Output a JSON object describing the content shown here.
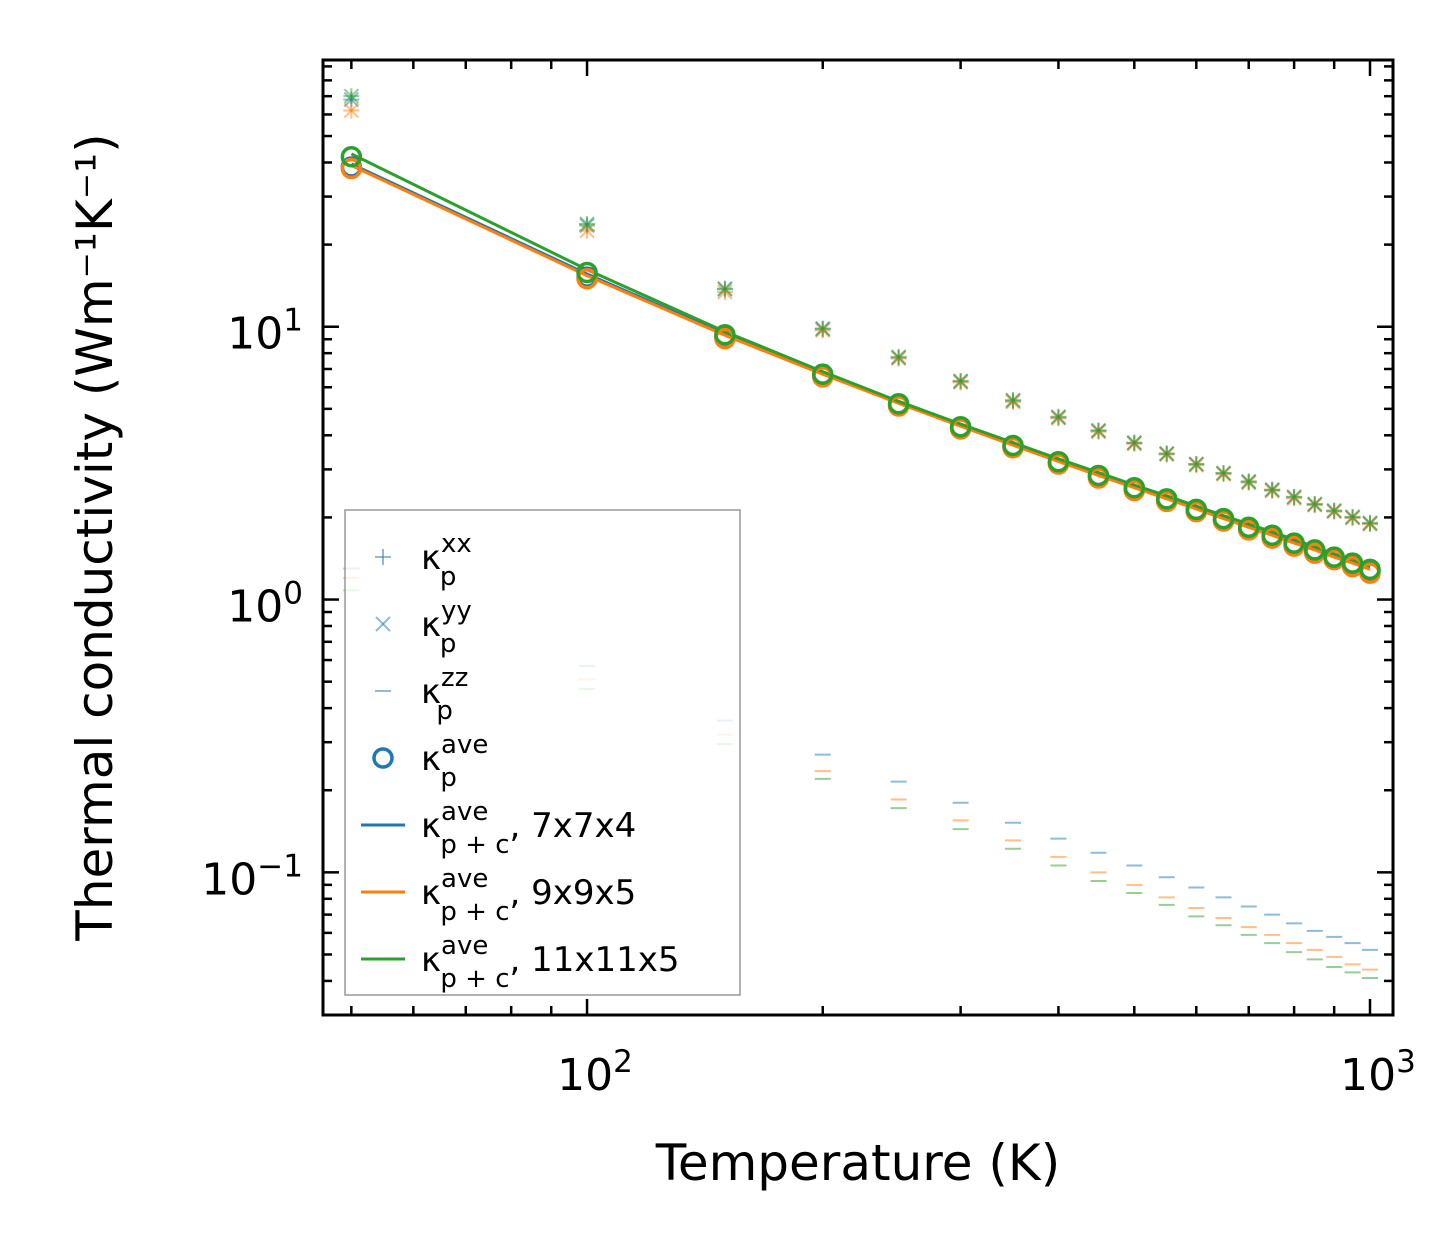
{
  "chart_data": {
    "type": "scatter",
    "x_scale": "log",
    "y_scale": "log",
    "xlim": [
      46,
      1070
    ],
    "ylim": [
      0.03,
      95
    ],
    "xlabel": "Temperature (K)",
    "ylabel": "Thermal conductivity (Wm⁻¹K⁻¹)",
    "x_ticks": [
      {
        "value": 100,
        "base": "10",
        "exp": "2"
      },
      {
        "value": 1000,
        "base": "10",
        "exp": "3"
      }
    ],
    "y_ticks": [
      {
        "value": 0.1,
        "base": "10",
        "exp": "−1"
      },
      {
        "value": 1,
        "base": "10",
        "exp": "0"
      },
      {
        "value": 10,
        "base": "10",
        "exp": "1"
      }
    ],
    "grid": false,
    "legend_position": "lower-left",
    "temperatures": [
      50,
      100,
      150,
      200,
      250,
      300,
      350,
      400,
      450,
      500,
      550,
      600,
      650,
      700,
      750,
      800,
      850,
      900,
      950,
      1000
    ],
    "series": [
      {
        "name": "7x7x4",
        "color": "#1f77b4",
        "xx": [
          68,
          23.5,
          13.7,
          9.8,
          7.7,
          6.3,
          5.35,
          4.65,
          4.15,
          3.75,
          3.42,
          3.13,
          2.9,
          2.7,
          2.52,
          2.37,
          2.23,
          2.11,
          2.0,
          1.9
        ],
        "yy": [
          68,
          23.5,
          13.7,
          9.8,
          7.7,
          6.3,
          5.35,
          4.65,
          4.15,
          3.75,
          3.42,
          3.13,
          2.9,
          2.7,
          2.52,
          2.37,
          2.23,
          2.11,
          2.0,
          1.9
        ],
        "zz": [
          1.3,
          0.57,
          0.36,
          0.27,
          0.215,
          0.18,
          0.152,
          0.133,
          0.118,
          0.106,
          0.096,
          0.088,
          0.081,
          0.075,
          0.07,
          0.065,
          0.061,
          0.058,
          0.055,
          0.052
        ],
        "ave": [
          38.5,
          15.2,
          9.2,
          6.6,
          5.15,
          4.25,
          3.63,
          3.17,
          2.82,
          2.54,
          2.31,
          2.12,
          1.96,
          1.82,
          1.7,
          1.59,
          1.5,
          1.42,
          1.34,
          1.27
        ],
        "line": [
          39.5,
          15.6,
          9.4,
          6.75,
          5.27,
          4.35,
          3.71,
          3.24,
          2.88,
          2.59,
          2.36,
          2.17,
          2.0,
          1.86,
          1.74,
          1.63,
          1.54,
          1.45,
          1.38,
          1.31
        ]
      },
      {
        "name": "9x9x5",
        "color": "#ff7f0e",
        "xx": [
          62,
          22.5,
          13.4,
          9.7,
          7.65,
          6.25,
          5.3,
          4.62,
          4.12,
          3.72,
          3.4,
          3.11,
          2.88,
          2.68,
          2.5,
          2.35,
          2.22,
          2.1,
          1.99,
          1.89
        ],
        "yy": [
          62,
          22.5,
          13.4,
          9.7,
          7.65,
          6.25,
          5.3,
          4.62,
          4.12,
          3.72,
          3.4,
          3.11,
          2.88,
          2.68,
          2.5,
          2.35,
          2.22,
          2.1,
          1.99,
          1.89
        ],
        "zz": [
          1.2,
          0.51,
          0.32,
          0.235,
          0.185,
          0.155,
          0.131,
          0.114,
          0.1,
          0.09,
          0.081,
          0.074,
          0.068,
          0.063,
          0.059,
          0.055,
          0.052,
          0.049,
          0.046,
          0.044
        ],
        "ave": [
          38.0,
          15.0,
          9.05,
          6.55,
          5.12,
          4.22,
          3.6,
          3.14,
          2.79,
          2.51,
          2.29,
          2.1,
          1.94,
          1.8,
          1.68,
          1.57,
          1.48,
          1.4,
          1.32,
          1.25
        ],
        "line": [
          39.0,
          15.4,
          9.3,
          6.7,
          5.24,
          4.32,
          3.68,
          3.21,
          2.85,
          2.57,
          2.34,
          2.15,
          1.98,
          1.84,
          1.72,
          1.61,
          1.52,
          1.43,
          1.36,
          1.29
        ]
      },
      {
        "name": "11x11x5",
        "color": "#2ca02c",
        "xx": [
          70,
          23.8,
          13.8,
          9.85,
          7.75,
          6.33,
          5.38,
          4.68,
          4.17,
          3.76,
          3.43,
          3.14,
          2.91,
          2.71,
          2.53,
          2.38,
          2.24,
          2.12,
          2.01,
          1.91
        ],
        "yy": [
          70,
          23.8,
          13.8,
          9.85,
          7.75,
          6.33,
          5.38,
          4.68,
          4.17,
          3.76,
          3.43,
          3.14,
          2.91,
          2.71,
          2.53,
          2.38,
          2.24,
          2.12,
          2.01,
          1.91
        ],
        "zz": [
          1.08,
          0.47,
          0.295,
          0.22,
          0.172,
          0.144,
          0.122,
          0.106,
          0.093,
          0.084,
          0.076,
          0.069,
          0.064,
          0.059,
          0.055,
          0.051,
          0.048,
          0.045,
          0.043,
          0.041
        ],
        "ave": [
          42.0,
          15.8,
          9.35,
          6.7,
          5.22,
          4.3,
          3.67,
          3.2,
          2.85,
          2.57,
          2.34,
          2.14,
          1.98,
          1.84,
          1.72,
          1.61,
          1.52,
          1.43,
          1.36,
          1.29
        ],
        "line": [
          43.0,
          16.2,
          9.6,
          6.85,
          5.33,
          4.4,
          3.76,
          3.28,
          2.92,
          2.63,
          2.4,
          2.2,
          2.03,
          1.89,
          1.77,
          1.66,
          1.56,
          1.47,
          1.4,
          1.33
        ]
      }
    ],
    "legend": [
      {
        "kind": "plus",
        "base": "κ",
        "sub": "p",
        "sup": "xx",
        "suffix": ""
      },
      {
        "kind": "cross",
        "base": "κ",
        "sub": "p",
        "sup": "yy",
        "suffix": ""
      },
      {
        "kind": "dash",
        "base": "κ",
        "sub": "p",
        "sup": "zz",
        "suffix": ""
      },
      {
        "kind": "circle",
        "base": "κ",
        "sub": "p",
        "sup": "ave",
        "suffix": ""
      },
      {
        "kind": "line",
        "base": "κ",
        "sub": "p + c",
        "sup": "ave",
        "suffix": ", 7x7x4"
      },
      {
        "kind": "line",
        "base": "κ",
        "sub": "p + c",
        "sup": "ave",
        "suffix": ", 9x9x5"
      },
      {
        "kind": "line",
        "base": "κ",
        "sub": "p + c",
        "sup": "ave",
        "suffix": ", 11x11x5"
      }
    ]
  }
}
